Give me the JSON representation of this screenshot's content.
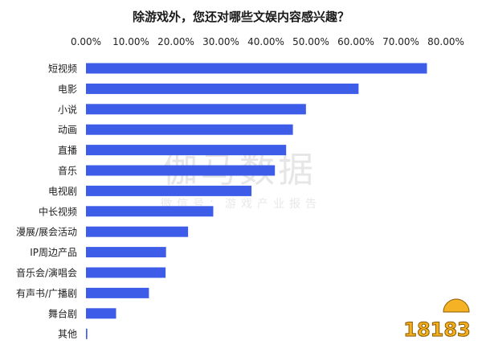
{
  "chart_data": {
    "type": "bar",
    "orientation": "horizontal",
    "title": "除游戏外，您还对哪些文娱内容感兴趣？",
    "xlim": [
      0,
      80
    ],
    "ticks": [
      "0.00%",
      "10.00%",
      "20.00%",
      "30.00%",
      "40.00%",
      "50.00%",
      "60.00%",
      "70.00%",
      "80.00%"
    ],
    "tick_values": [
      0,
      10,
      20,
      30,
      40,
      50,
      60,
      70,
      80
    ],
    "axis_position": "top",
    "grid": false,
    "bar_color": "#3d5ce8",
    "categories": [
      "短视频",
      "电影",
      "小说",
      "动画",
      "直播",
      "音乐",
      "电视剧",
      "中长视频",
      "漫展/展会活动",
      "IP周边产品",
      "音乐会/演唱会",
      "有声书/广播剧",
      "舞台剧",
      "其他"
    ],
    "values": [
      75.8,
      60.6,
      48.9,
      46.0,
      44.5,
      42.0,
      36.8,
      28.3,
      22.7,
      17.8,
      17.7,
      14.0,
      6.7,
      0.3
    ]
  },
  "watermark": {
    "title": "伽马数据",
    "subtitle": "微信号：游戏产业报告"
  },
  "logo": {
    "text": "18183"
  }
}
